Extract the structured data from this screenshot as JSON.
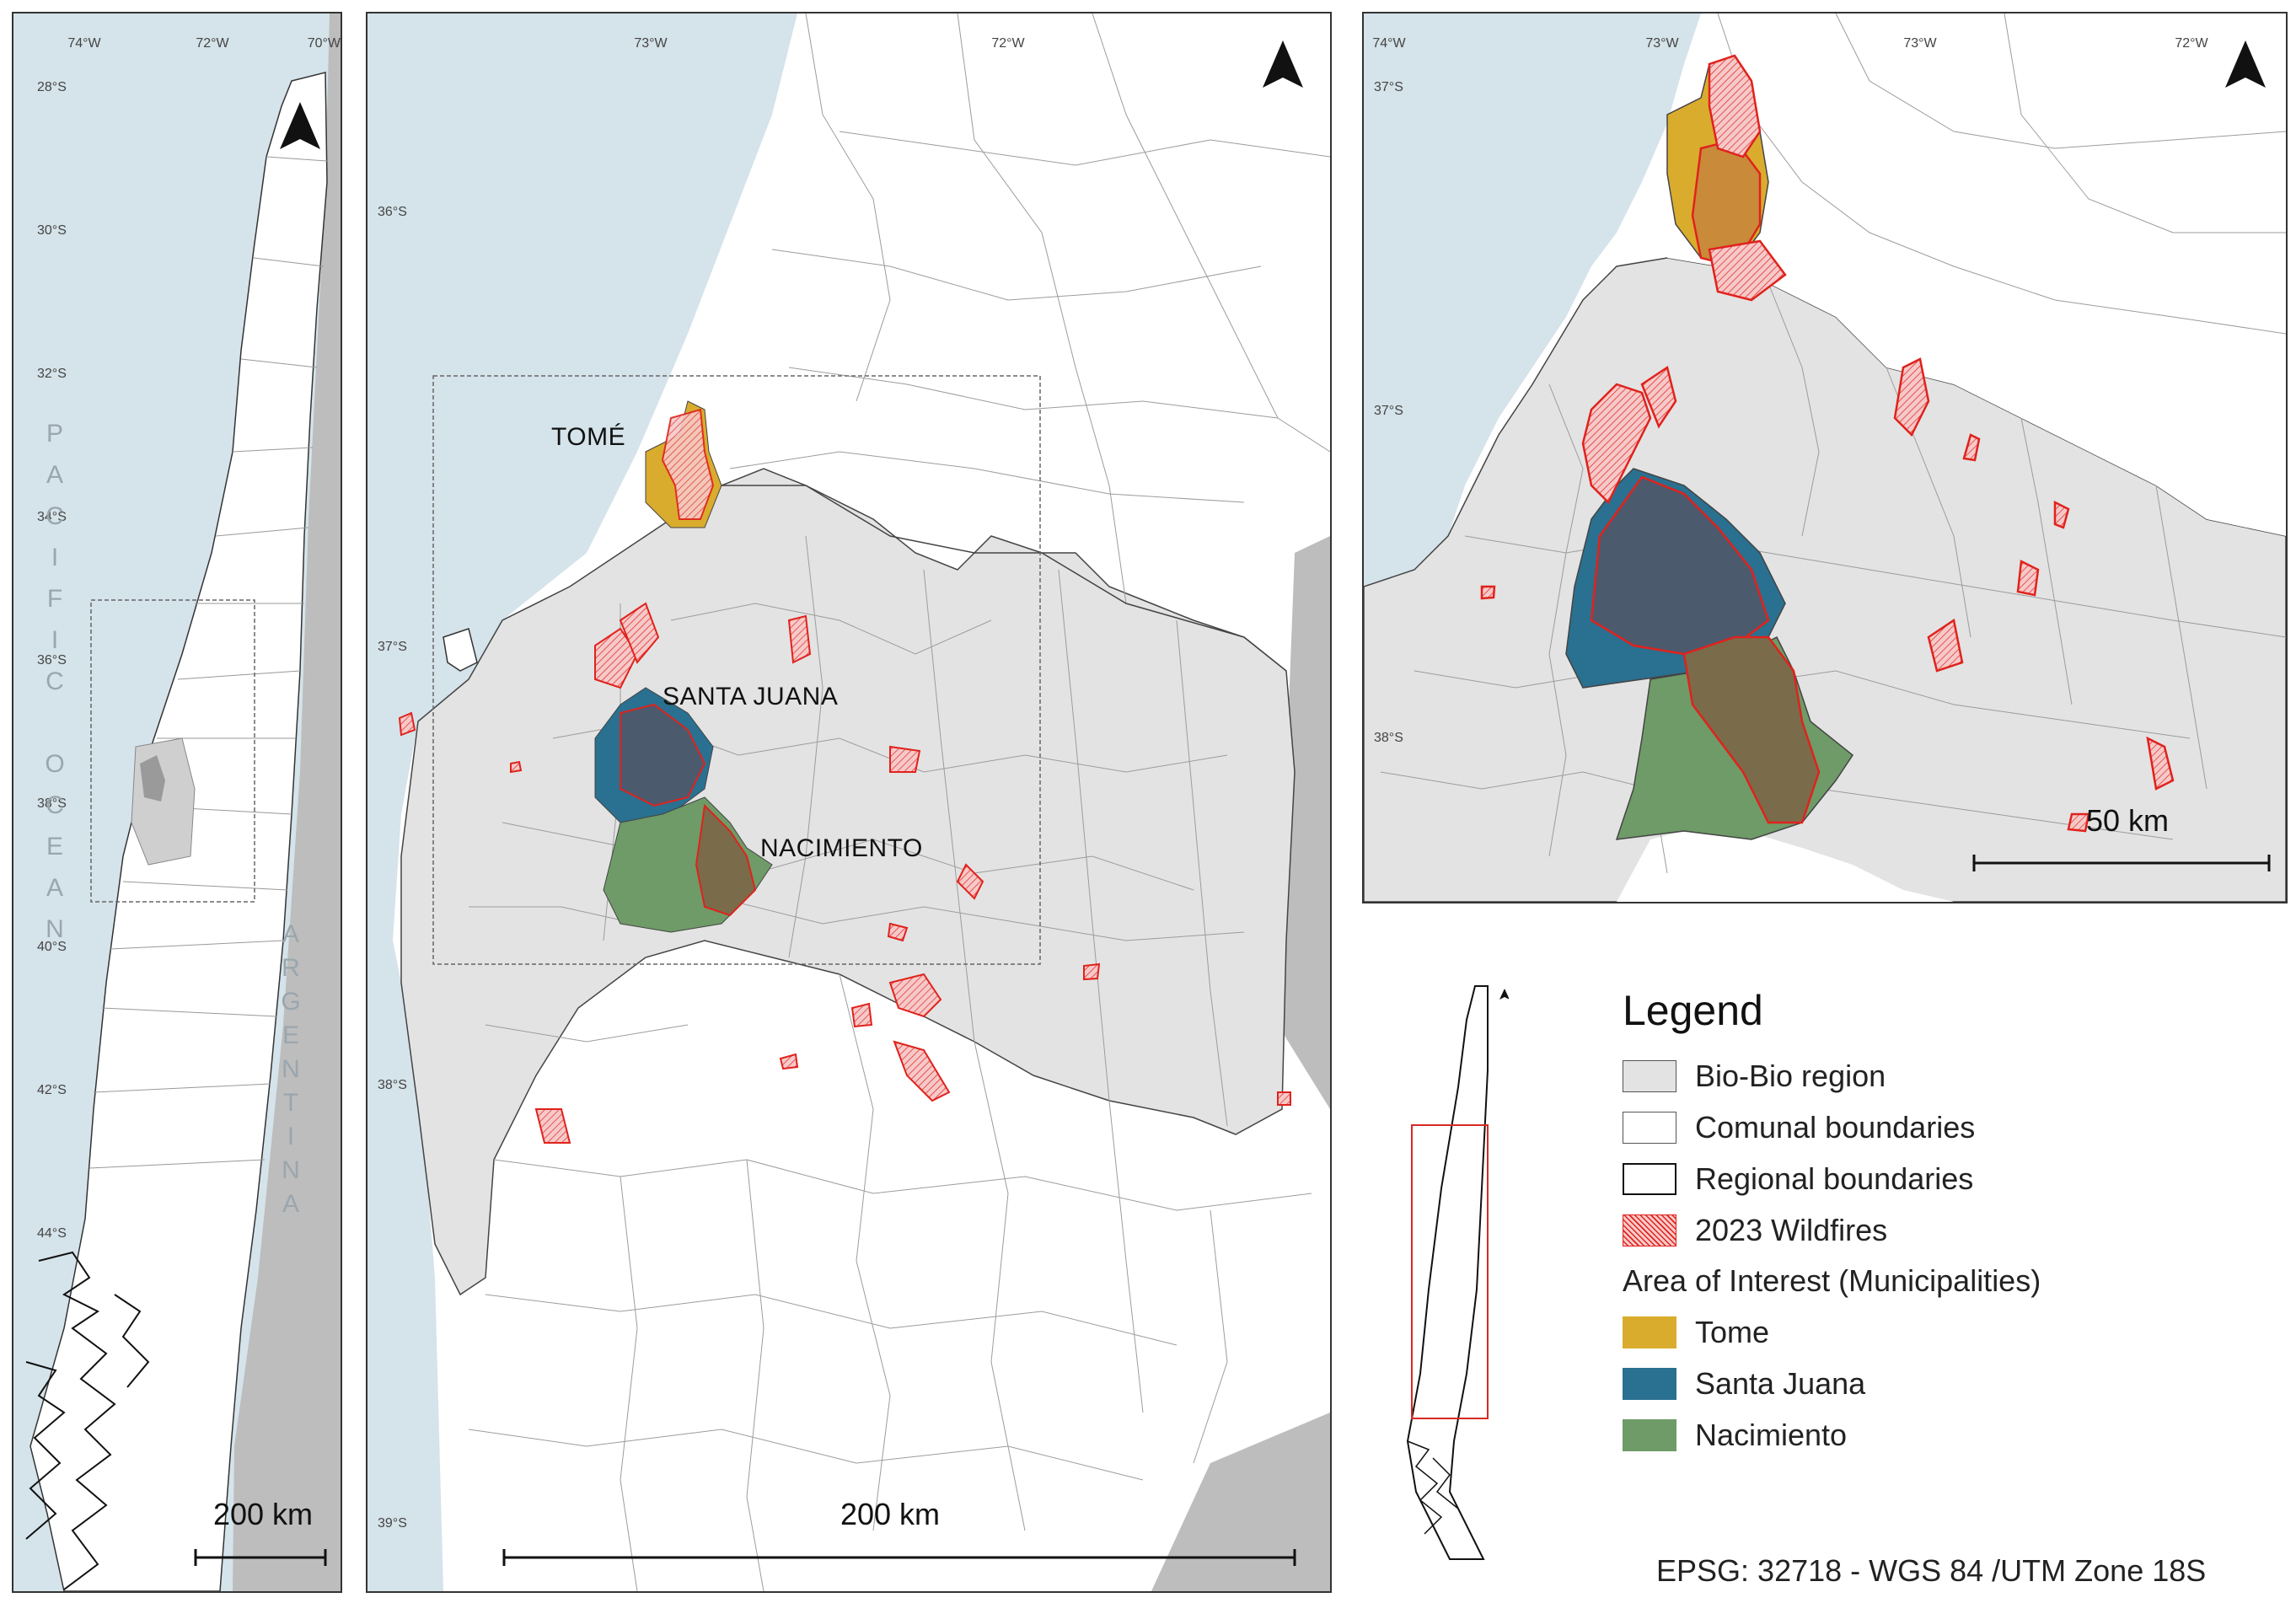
{
  "panels": {
    "overview": {
      "lat_labels": [
        "28°S",
        "30°S",
        "32°S",
        "34°S",
        "36°S",
        "38°S",
        "40°S",
        "42°S",
        "44°S"
      ],
      "lon_labels": [
        "74°W",
        "72°W",
        "70°W"
      ],
      "ocean_label": "PACIFIC OCEAN",
      "country_label": "ARGENTINA",
      "scale_label": "200 km"
    },
    "regional": {
      "lat_labels": [
        "36°S",
        "37°S",
        "38°S",
        "39°S"
      ],
      "lon_labels": [
        "73°W",
        "72°W"
      ],
      "places": {
        "tome": "TOMÉ",
        "santa_juana": "SANTA JUANA",
        "nacimiento": "NACIMIENTO"
      },
      "scale_label": "200 km"
    },
    "detail": {
      "lat_labels": [
        "37°S",
        "37°S",
        "38°S"
      ],
      "lon_labels": [
        "74°W",
        "73°W",
        "73°W",
        "72°W"
      ],
      "scale_label": "50 km"
    }
  },
  "legend": {
    "title": "Legend",
    "items": [
      {
        "label": "Bio-Bio region",
        "color": "#e3e3e3",
        "pattern": "none"
      },
      {
        "label": "Comunal boundaries",
        "color": "#ffffff",
        "pattern": "none"
      },
      {
        "label": "Regional boundaries",
        "color": "#ffffff",
        "pattern": "none"
      },
      {
        "label": "2023 Wildfires",
        "color": "#f6c9c9",
        "pattern": "hatch-red"
      }
    ],
    "aoi_heading": "Area of Interest (Municipalities)",
    "aoi_items": [
      {
        "label": "Tome",
        "color": "#d9ac2e"
      },
      {
        "label": "Santa Juana",
        "color": "#2a7090"
      },
      {
        "label": "Nacimiento",
        "color": "#6e9b67"
      }
    ]
  },
  "crs": "EPSG: 32718 - WGS 84 /UTM Zone 18S",
  "colors": {
    "ocean": "#d5e3ea",
    "argentina": "#bdbdbd",
    "bio_bio": "#e3e3e3",
    "wildfire_outline": "#e0221c",
    "santa_juana_overlap": "#4c5a6e",
    "nacimiento_overlap": "#7a6b4b",
    "tome_overlap": "#c98a3a",
    "locator_frame": "#d62a24"
  },
  "icons": {
    "north_arrow": "north-arrow-icon"
  }
}
